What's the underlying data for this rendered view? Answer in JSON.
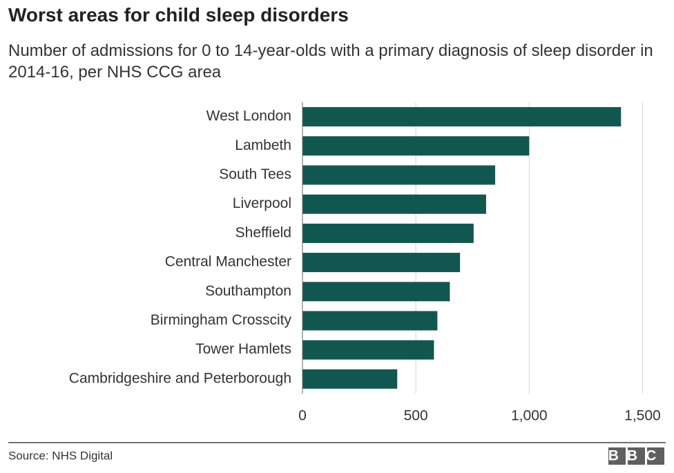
{
  "chart_data": {
    "type": "bar",
    "orientation": "horizontal",
    "title": "Worst areas for child sleep disorders",
    "subtitle": "Number of admissions for 0 to 14-year-olds with a primary diagnosis of sleep disorder in 2014-16, per NHS CCG area",
    "categories": [
      "West London",
      "Lambeth",
      "South Tees",
      "Liverpool",
      "Sheffield",
      "Central Manchester",
      "Southampton",
      "Birmingham Crosscity",
      "Tower Hamlets",
      "Cambridgeshire and Peterborough"
    ],
    "values": [
      1405,
      1000,
      850,
      810,
      755,
      695,
      650,
      595,
      580,
      418
    ],
    "color": "#12574f",
    "xlim": [
      0,
      1590
    ],
    "xticks": [
      0,
      500,
      {
        "value": 1000,
        "label": "1,000"
      },
      {
        "value": 1500,
        "label": "1,500"
      }
    ],
    "grid": true,
    "source": "Source: NHS Digital",
    "logo": "BBC"
  }
}
